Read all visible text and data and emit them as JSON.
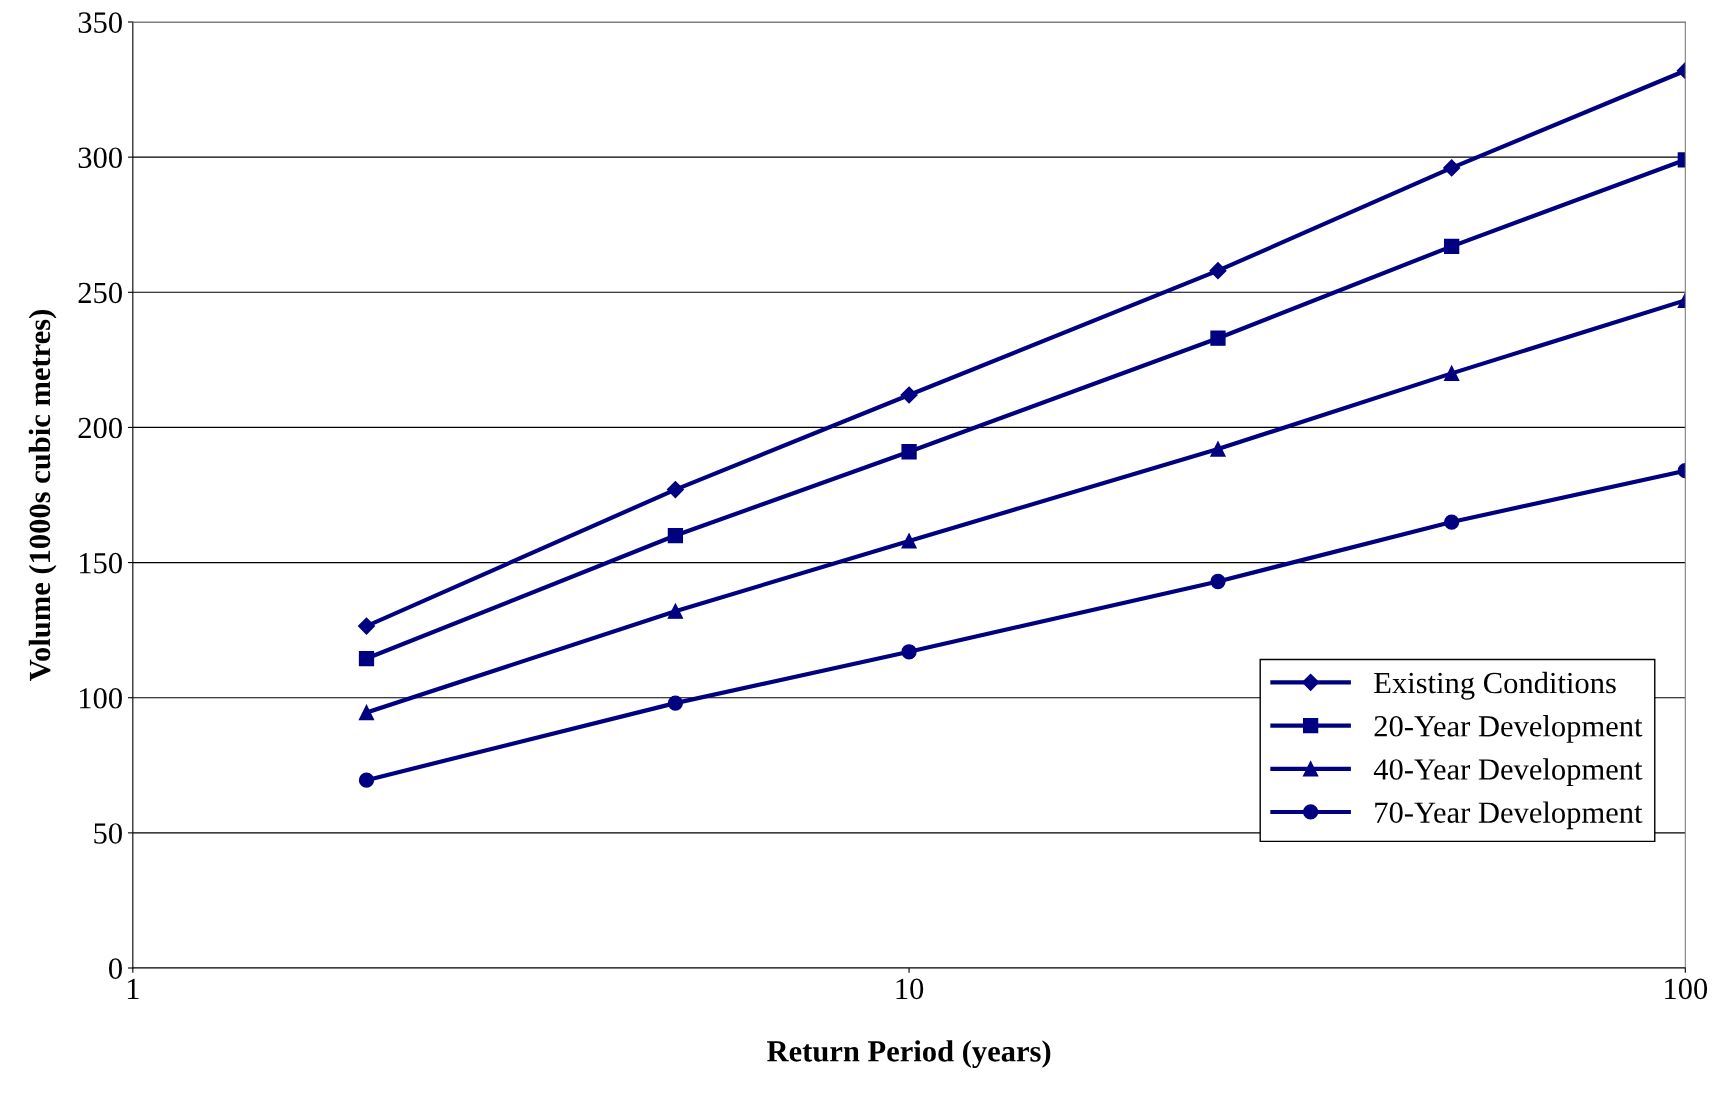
{
  "chart_data": {
    "type": "line",
    "xlabel": "Return Period (years)",
    "ylabel": "Volume (1000s cubic metres)",
    "log": "x",
    "xlim": [
      1,
      100
    ],
    "xticks": [
      1,
      10,
      100
    ],
    "ylim": [
      0,
      350
    ],
    "yticks": [
      0,
      50,
      100,
      150,
      200,
      250,
      300,
      350
    ],
    "grid": "y",
    "legend": "right",
    "line_style": "solid",
    "x": [
      2,
      5,
      10,
      25,
      50,
      100
    ],
    "series": [
      {
        "name": "Existing Conditions",
        "color": "#000080",
        "marker": "diamond",
        "values": [
          126.5,
          177,
          212,
          258,
          296,
          332
        ]
      },
      {
        "name": "20-Year Development",
        "color": "#000080",
        "marker": "square",
        "values": [
          114.5,
          160,
          191,
          233,
          267,
          299
        ]
      },
      {
        "name": "40-Year Development",
        "color": "#000080",
        "marker": "triangle",
        "values": [
          94.5,
          132,
          158,
          192,
          220,
          247
        ]
      },
      {
        "name": "70-Year Development",
        "color": "#000080",
        "marker": "circle",
        "values": [
          69.5,
          98,
          117,
          143,
          165,
          184
        ]
      }
    ]
  }
}
